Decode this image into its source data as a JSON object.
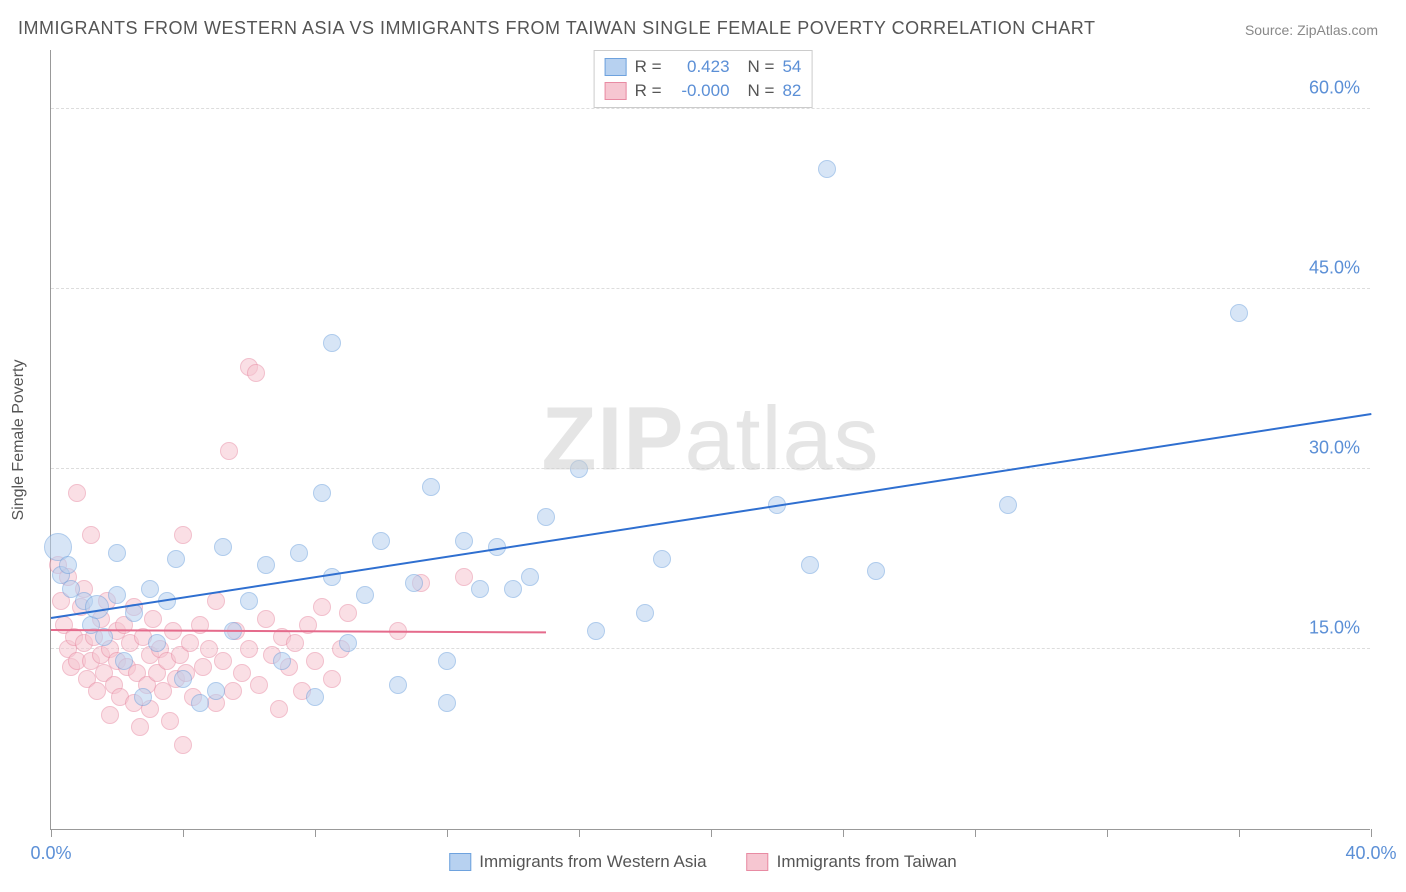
{
  "title": "IMMIGRANTS FROM WESTERN ASIA VS IMMIGRANTS FROM TAIWAN SINGLE FEMALE POVERTY CORRELATION CHART",
  "source": "Source: ZipAtlas.com",
  "y_axis_label": "Single Female Poverty",
  "watermark": {
    "part1": "ZIP",
    "part2": "atlas"
  },
  "chart": {
    "type": "scatter",
    "xlim": [
      0,
      40
    ],
    "ylim": [
      0,
      65
    ],
    "x_ticks": [
      0,
      4,
      8,
      12,
      16,
      20,
      24,
      28,
      32,
      36,
      40
    ],
    "x_tick_labels": {
      "0": "0.0%",
      "40": "40.0%"
    },
    "y_gridlines": [
      15,
      30,
      45,
      60
    ],
    "y_tick_labels": {
      "15": "15.0%",
      "30": "30.0%",
      "45": "45.0%",
      "60": "60.0%"
    },
    "background_color": "#ffffff",
    "grid_color": "#dddddd",
    "axis_color": "#999999",
    "tick_font_color": "#5b8fd6",
    "tick_fontsize": 18,
    "title_fontsize": 18,
    "title_color": "#555555",
    "marker_radius": 9,
    "marker_opacity": 0.55,
    "series": [
      {
        "name": "Immigrants from Western Asia",
        "color_fill": "#b7d1f0",
        "color_stroke": "#6ea2de",
        "R": "0.423",
        "N": "54",
        "trend": {
          "x1": 0,
          "y1": 17.5,
          "x2": 40,
          "y2": 34.5,
          "color": "#2f6fd0",
          "width": 2
        },
        "points": [
          {
            "x": 0.2,
            "y": 23.5,
            "r": 14
          },
          {
            "x": 0.3,
            "y": 21.2
          },
          {
            "x": 0.5,
            "y": 22.0
          },
          {
            "x": 0.6,
            "y": 20.0
          },
          {
            "x": 1.0,
            "y": 19.0
          },
          {
            "x": 1.2,
            "y": 17.0
          },
          {
            "x": 1.4,
            "y": 18.5,
            "r": 12
          },
          {
            "x": 1.6,
            "y": 16.0
          },
          {
            "x": 2.0,
            "y": 23.0
          },
          {
            "x": 2.0,
            "y": 19.5
          },
          {
            "x": 2.2,
            "y": 14.0
          },
          {
            "x": 2.5,
            "y": 18.0
          },
          {
            "x": 2.8,
            "y": 11.0
          },
          {
            "x": 3.0,
            "y": 20.0
          },
          {
            "x": 3.2,
            "y": 15.5
          },
          {
            "x": 3.5,
            "y": 19.0
          },
          {
            "x": 3.8,
            "y": 22.5
          },
          {
            "x": 4.0,
            "y": 12.5
          },
          {
            "x": 4.5,
            "y": 10.5
          },
          {
            "x": 5.0,
            "y": 11.5
          },
          {
            "x": 5.2,
            "y": 23.5
          },
          {
            "x": 5.5,
            "y": 16.5
          },
          {
            "x": 6.0,
            "y": 19.0
          },
          {
            "x": 6.5,
            "y": 22.0
          },
          {
            "x": 7.0,
            "y": 14.0
          },
          {
            "x": 7.5,
            "y": 23.0
          },
          {
            "x": 8.0,
            "y": 11.0
          },
          {
            "x": 8.2,
            "y": 28.0
          },
          {
            "x": 8.5,
            "y": 21.0
          },
          {
            "x": 8.5,
            "y": 40.5
          },
          {
            "x": 9.0,
            "y": 15.5
          },
          {
            "x": 9.5,
            "y": 19.5
          },
          {
            "x": 10.0,
            "y": 24.0
          },
          {
            "x": 10.5,
            "y": 12.0
          },
          {
            "x": 11.0,
            "y": 20.5
          },
          {
            "x": 11.5,
            "y": 28.5
          },
          {
            "x": 12.0,
            "y": 10.5
          },
          {
            "x": 12.0,
            "y": 14.0
          },
          {
            "x": 12.5,
            "y": 24.0
          },
          {
            "x": 13.0,
            "y": 20.0
          },
          {
            "x": 13.5,
            "y": 23.5
          },
          {
            "x": 14.0,
            "y": 20.0
          },
          {
            "x": 14.5,
            "y": 21.0
          },
          {
            "x": 15.0,
            "y": 26.0
          },
          {
            "x": 16.0,
            "y": 30.0
          },
          {
            "x": 16.5,
            "y": 16.5
          },
          {
            "x": 18.0,
            "y": 18.0
          },
          {
            "x": 18.5,
            "y": 22.5
          },
          {
            "x": 22.0,
            "y": 27.0
          },
          {
            "x": 23.0,
            "y": 22.0
          },
          {
            "x": 23.5,
            "y": 55.0
          },
          {
            "x": 25.0,
            "y": 21.5
          },
          {
            "x": 29.0,
            "y": 27.0
          },
          {
            "x": 36.0,
            "y": 43.0
          }
        ]
      },
      {
        "name": "Immigrants from Taiwan",
        "color_fill": "#f6c6d1",
        "color_stroke": "#e88ba3",
        "R": "-0.000",
        "N": "82",
        "trend": {
          "x1": 0,
          "y1": 16.5,
          "x2": 15,
          "y2": 16.3,
          "color": "#e56b8c",
          "width": 2
        },
        "points": [
          {
            "x": 0.2,
            "y": 22.0
          },
          {
            "x": 0.3,
            "y": 19.0
          },
          {
            "x": 0.4,
            "y": 17.0
          },
          {
            "x": 0.5,
            "y": 15.0
          },
          {
            "x": 0.5,
            "y": 21.0
          },
          {
            "x": 0.6,
            "y": 13.5
          },
          {
            "x": 0.7,
            "y": 16.0
          },
          {
            "x": 0.8,
            "y": 28.0
          },
          {
            "x": 0.8,
            "y": 14.0
          },
          {
            "x": 0.9,
            "y": 18.5
          },
          {
            "x": 1.0,
            "y": 15.5
          },
          {
            "x": 1.0,
            "y": 20.0
          },
          {
            "x": 1.1,
            "y": 12.5
          },
          {
            "x": 1.2,
            "y": 24.5
          },
          {
            "x": 1.2,
            "y": 14.0
          },
          {
            "x": 1.3,
            "y": 16.0
          },
          {
            "x": 1.4,
            "y": 11.5
          },
          {
            "x": 1.5,
            "y": 17.5
          },
          {
            "x": 1.5,
            "y": 14.5
          },
          {
            "x": 1.6,
            "y": 13.0
          },
          {
            "x": 1.7,
            "y": 19.0
          },
          {
            "x": 1.8,
            "y": 15.0
          },
          {
            "x": 1.8,
            "y": 9.5
          },
          {
            "x": 1.9,
            "y": 12.0
          },
          {
            "x": 2.0,
            "y": 16.5
          },
          {
            "x": 2.0,
            "y": 14.0
          },
          {
            "x": 2.1,
            "y": 11.0
          },
          {
            "x": 2.2,
            "y": 17.0
          },
          {
            "x": 2.3,
            "y": 13.5
          },
          {
            "x": 2.4,
            "y": 15.5
          },
          {
            "x": 2.5,
            "y": 10.5
          },
          {
            "x": 2.5,
            "y": 18.5
          },
          {
            "x": 2.6,
            "y": 13.0
          },
          {
            "x": 2.7,
            "y": 8.5
          },
          {
            "x": 2.8,
            "y": 16.0
          },
          {
            "x": 2.9,
            "y": 12.0
          },
          {
            "x": 3.0,
            "y": 14.5
          },
          {
            "x": 3.0,
            "y": 10.0
          },
          {
            "x": 3.1,
            "y": 17.5
          },
          {
            "x": 3.2,
            "y": 13.0
          },
          {
            "x": 3.3,
            "y": 15.0
          },
          {
            "x": 3.4,
            "y": 11.5
          },
          {
            "x": 3.5,
            "y": 14.0
          },
          {
            "x": 3.6,
            "y": 9.0
          },
          {
            "x": 3.7,
            "y": 16.5
          },
          {
            "x": 3.8,
            "y": 12.5
          },
          {
            "x": 3.9,
            "y": 14.5
          },
          {
            "x": 4.0,
            "y": 7.0
          },
          {
            "x": 4.0,
            "y": 24.5
          },
          {
            "x": 4.1,
            "y": 13.0
          },
          {
            "x": 4.2,
            "y": 15.5
          },
          {
            "x": 4.3,
            "y": 11.0
          },
          {
            "x": 4.5,
            "y": 17.0
          },
          {
            "x": 4.6,
            "y": 13.5
          },
          {
            "x": 4.8,
            "y": 15.0
          },
          {
            "x": 5.0,
            "y": 10.5
          },
          {
            "x": 5.0,
            "y": 19.0
          },
          {
            "x": 5.2,
            "y": 14.0
          },
          {
            "x": 5.4,
            "y": 31.5
          },
          {
            "x": 5.5,
            "y": 11.5
          },
          {
            "x": 5.6,
            "y": 16.5
          },
          {
            "x": 5.8,
            "y": 13.0
          },
          {
            "x": 6.0,
            "y": 38.5
          },
          {
            "x": 6.0,
            "y": 15.0
          },
          {
            "x": 6.2,
            "y": 38.0
          },
          {
            "x": 6.3,
            "y": 12.0
          },
          {
            "x": 6.5,
            "y": 17.5
          },
          {
            "x": 6.7,
            "y": 14.5
          },
          {
            "x": 6.9,
            "y": 10.0
          },
          {
            "x": 7.0,
            "y": 16.0
          },
          {
            "x": 7.2,
            "y": 13.5
          },
          {
            "x": 7.4,
            "y": 15.5
          },
          {
            "x": 7.6,
            "y": 11.5
          },
          {
            "x": 7.8,
            "y": 17.0
          },
          {
            "x": 8.0,
            "y": 14.0
          },
          {
            "x": 8.2,
            "y": 18.5
          },
          {
            "x": 8.5,
            "y": 12.5
          },
          {
            "x": 8.8,
            "y": 15.0
          },
          {
            "x": 9.0,
            "y": 18.0
          },
          {
            "x": 10.5,
            "y": 16.5
          },
          {
            "x": 11.2,
            "y": 20.5
          },
          {
            "x": 12.5,
            "y": 21.0
          }
        ]
      }
    ]
  },
  "legend_top": {
    "r_label": "R =",
    "n_label": "N ="
  },
  "legend_bottom": {
    "series1": "Immigrants from Western Asia",
    "series2": "Immigrants from Taiwan"
  }
}
